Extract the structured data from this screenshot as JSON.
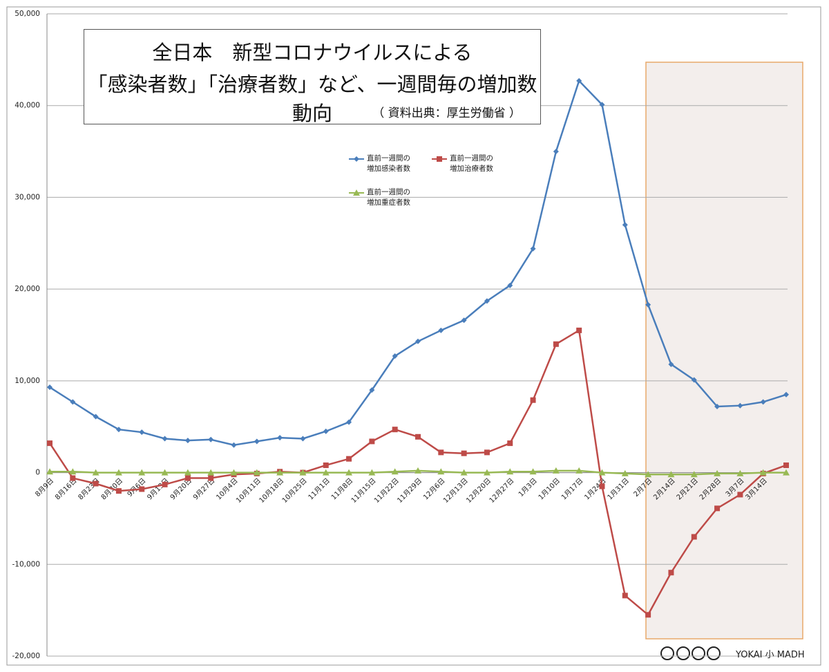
{
  "chart_data": {
    "type": "line",
    "title": [
      "全日本　新型コロナウイルスによる",
      "「感染者数」「治療者数」など、一週間毎の増加数動向"
    ],
    "subtitle": "（ 資料出典：厚生労働省 ）",
    "categories": [
      "8月9日",
      "8月16日",
      "8月23日",
      "8月30日",
      "9月6日",
      "9月13日",
      "9月20日",
      "9月27日",
      "10月4日",
      "10月11日",
      "10月18日",
      "10月25日",
      "11月1日",
      "11月8日",
      "11月15日",
      "11月22日",
      "11月29日",
      "12月6日",
      "12月13日",
      "12月20日",
      "12月27日",
      "1月3日",
      "1月10日",
      "1月17日",
      "1月24日",
      "1月31日",
      "2月7日",
      "2月14日",
      "2月21日",
      "2月28日",
      "3月7日",
      "3月14日",
      null
    ],
    "series": [
      {
        "name": "直前一週間の増加感染者数",
        "color": "#4a7ebb",
        "marker": "diamond",
        "values": [
          9300,
          7700,
          6100,
          4700,
          4400,
          3700,
          3500,
          3600,
          3000,
          3400,
          3800,
          3700,
          4500,
          5500,
          9000,
          12700,
          14300,
          15500,
          16600,
          18700,
          20400,
          24400,
          35000,
          42700,
          40100,
          27000,
          18300,
          11800,
          10100,
          7200,
          7300,
          7700,
          8500
        ]
      },
      {
        "name": "直前一週間の増加治療者数",
        "color": "#be4b48",
        "marker": "square",
        "values": [
          3200,
          -600,
          -1200,
          -2000,
          -1800,
          -1300,
          -600,
          -600,
          -200,
          -100,
          100,
          0,
          800,
          1500,
          3400,
          4700,
          3900,
          2200,
          2100,
          2200,
          3200,
          7900,
          14000,
          15500,
          -1500,
          -13400,
          -15500,
          -10900,
          -7000,
          -3900,
          -2400,
          -100,
          800
        ]
      },
      {
        "name": "直前一週間の増加重症者数",
        "color": "#98b954",
        "marker": "triangle",
        "values": [
          100,
          100,
          0,
          0,
          0,
          0,
          0,
          0,
          0,
          0,
          0,
          0,
          0,
          0,
          0,
          100,
          200,
          100,
          0,
          0,
          100,
          100,
          200,
          200,
          0,
          -100,
          -200,
          -200,
          -200,
          -100,
          -100,
          0,
          0
        ]
      }
    ],
    "ylim": [
      -20000,
      50000
    ],
    "yticks": [
      {
        "value": -20000,
        "label": "-20,000"
      },
      {
        "value": -10000,
        "label": "-10,000"
      },
      0,
      {
        "value": 10000,
        "label": "10,000"
      },
      {
        "value": 20000,
        "label": "20,000"
      },
      {
        "value": 30000,
        "label": "30,000"
      },
      {
        "value": 40000,
        "label": "40,000"
      },
      {
        "value": 50000,
        "label": "50,000"
      }
    ],
    "grid": true,
    "watermark": "YOKAI 小 MADH"
  }
}
